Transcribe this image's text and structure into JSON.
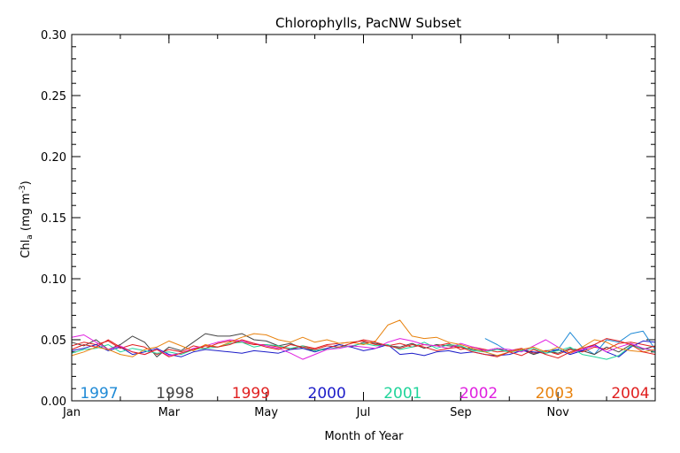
{
  "chart_data": {
    "type": "line",
    "title": "Chlorophylls, PacNW Subset",
    "xlabel": "Month of Year",
    "ylabel_main": "Chl",
    "ylabel_sub": "a",
    "ylabel_units": "(mg m",
    "ylabel_exp": "-3",
    "ylabel_close": ")",
    "xlim": [
      0,
      12
    ],
    "ylim": [
      0,
      0.3
    ],
    "x_ticks": [
      {
        "value": 0,
        "label": "Jan"
      },
      {
        "value": 2,
        "label": "Mar"
      },
      {
        "value": 4,
        "label": "May"
      },
      {
        "value": 6,
        "label": "Jul"
      },
      {
        "value": 8,
        "label": "Sep"
      },
      {
        "value": 10,
        "label": "Nov"
      }
    ],
    "y_ticks": [
      {
        "value": 0.0,
        "label": "0.00"
      },
      {
        "value": 0.05,
        "label": "0.05"
      },
      {
        "value": 0.1,
        "label": "0.10"
      },
      {
        "value": 0.15,
        "label": "0.15"
      },
      {
        "value": 0.2,
        "label": "0.20"
      },
      {
        "value": 0.25,
        "label": "0.25"
      },
      {
        "value": 0.3,
        "label": "0.30"
      }
    ],
    "legend_placement": "bottom inside plot",
    "x": [
      0,
      0.25,
      0.5,
      0.75,
      1,
      1.25,
      1.5,
      1.75,
      2,
      2.25,
      2.5,
      2.75,
      3,
      3.25,
      3.5,
      3.75,
      4,
      4.25,
      4.5,
      4.75,
      5,
      5.25,
      5.5,
      5.75,
      6,
      6.25,
      6.5,
      6.75,
      7,
      7.25,
      7.5,
      7.75,
      8,
      8.25,
      8.5,
      8.75,
      9,
      9.25,
      9.5,
      9.75,
      10,
      10.25,
      10.5,
      10.75,
      11,
      11.25,
      11.5,
      11.75,
      12
    ],
    "series": [
      {
        "name": "1997",
        "color": "#1f8ad6",
        "values": [
          null,
          null,
          null,
          null,
          null,
          null,
          null,
          null,
          null,
          null,
          null,
          null,
          null,
          null,
          null,
          null,
          null,
          null,
          null,
          null,
          null,
          null,
          null,
          null,
          null,
          null,
          null,
          null,
          null,
          null,
          null,
          null,
          null,
          null,
          0.051,
          0.046,
          0.04,
          0.042,
          0.039,
          0.041,
          0.042,
          0.056,
          0.044,
          0.038,
          0.05,
          0.048,
          0.055,
          0.057,
          0.042
        ]
      },
      {
        "name": "1998",
        "color": "#444444",
        "values": [
          0.048,
          0.045,
          0.05,
          0.042,
          0.046,
          0.053,
          0.048,
          0.036,
          0.044,
          0.041,
          0.048,
          0.055,
          0.053,
          0.053,
          0.055,
          0.05,
          0.049,
          0.045,
          0.047,
          0.043,
          0.041,
          0.043,
          0.046,
          0.044,
          0.048,
          0.047,
          0.045,
          0.044,
          0.047,
          0.043,
          0.046,
          0.045,
          0.044,
          0.042,
          0.041,
          0.043,
          0.04,
          0.042,
          0.038,
          0.041,
          0.039,
          0.043,
          0.041,
          0.038,
          0.044,
          0.04,
          0.046,
          0.042,
          0.045
        ]
      },
      {
        "name": "1999",
        "color": "#e02020",
        "values": [
          0.045,
          0.048,
          0.046,
          0.049,
          0.043,
          0.046,
          0.044,
          0.038,
          0.042,
          0.04,
          0.045,
          0.043,
          0.047,
          0.049,
          0.048,
          0.046,
          0.046,
          0.044,
          0.042,
          0.045,
          0.043,
          0.046,
          0.047,
          0.048,
          0.049,
          0.046,
          0.045,
          0.047,
          0.044,
          0.046,
          0.045,
          0.047,
          0.042,
          0.044,
          0.042,
          0.04,
          0.041,
          0.043,
          0.039,
          0.041,
          0.038,
          0.042,
          0.04,
          0.044,
          0.042,
          0.047,
          0.048,
          0.046,
          0.044
        ]
      },
      {
        "name": "2000",
        "color": "#1c1cc8",
        "values": [
          0.041,
          0.043,
          0.046,
          0.041,
          0.044,
          0.038,
          0.04,
          0.043,
          0.038,
          0.036,
          0.04,
          0.042,
          0.041,
          0.04,
          0.039,
          0.041,
          0.04,
          0.039,
          0.042,
          0.043,
          0.04,
          0.043,
          0.046,
          0.044,
          0.041,
          0.043,
          0.046,
          0.038,
          0.039,
          0.037,
          0.04,
          0.041,
          0.039,
          0.04,
          0.038,
          0.037,
          0.038,
          0.041,
          0.04,
          0.039,
          0.042,
          0.038,
          0.041,
          0.046,
          0.04,
          0.036,
          0.044,
          0.049,
          0.048
        ]
      },
      {
        "name": "2001",
        "color": "#20d49a",
        "values": [
          0.039,
          0.042,
          0.043,
          0.046,
          0.04,
          0.043,
          0.041,
          0.039,
          0.04,
          0.038,
          0.042,
          0.043,
          0.044,
          0.047,
          0.048,
          0.044,
          0.046,
          0.045,
          0.043,
          0.045,
          0.041,
          0.042,
          0.044,
          0.045,
          0.047,
          0.045,
          0.046,
          0.042,
          0.044,
          0.048,
          0.043,
          0.046,
          0.045,
          0.041,
          0.04,
          0.042,
          0.04,
          0.041,
          0.043,
          0.039,
          0.041,
          0.044,
          0.038,
          0.036,
          0.034,
          0.037,
          0.045,
          0.043,
          0.04
        ]
      },
      {
        "name": "2002",
        "color": "#e020e0",
        "values": [
          0.052,
          0.054,
          0.048,
          0.042,
          0.045,
          0.04,
          0.038,
          0.042,
          0.037,
          0.039,
          0.043,
          0.045,
          0.048,
          0.05,
          0.049,
          0.047,
          0.045,
          0.043,
          0.039,
          0.034,
          0.038,
          0.042,
          0.043,
          0.045,
          0.044,
          0.043,
          0.048,
          0.051,
          0.049,
          0.046,
          0.045,
          0.043,
          0.047,
          0.044,
          0.041,
          0.043,
          0.042,
          0.04,
          0.045,
          0.05,
          0.044,
          0.039,
          0.042,
          0.045,
          0.04,
          0.044,
          0.047,
          0.043,
          0.041
        ]
      },
      {
        "name": "2003",
        "color": "#e8820e",
        "values": [
          0.037,
          0.04,
          0.044,
          0.042,
          0.038,
          0.036,
          0.042,
          0.044,
          0.049,
          0.045,
          0.041,
          0.046,
          0.044,
          0.048,
          0.052,
          0.055,
          0.054,
          0.05,
          0.048,
          0.052,
          0.048,
          0.05,
          0.047,
          0.048,
          0.046,
          0.049,
          0.062,
          0.066,
          0.053,
          0.051,
          0.052,
          0.048,
          0.046,
          0.043,
          0.04,
          0.037,
          0.04,
          0.042,
          0.044,
          0.04,
          0.044,
          0.039,
          0.044,
          0.05,
          0.048,
          0.043,
          0.041,
          0.04,
          0.042
        ]
      },
      {
        "name": "2004",
        "color": "#e02020",
        "values": [
          0.042,
          0.046,
          0.044,
          0.05,
          0.044,
          0.04,
          0.038,
          0.042,
          0.036,
          0.039,
          0.042,
          0.045,
          0.044,
          0.046,
          0.05,
          0.047,
          0.044,
          0.042,
          0.046,
          0.044,
          0.042,
          0.045,
          0.044,
          0.047,
          0.05,
          0.048,
          0.045,
          0.043,
          0.046,
          0.044,
          0.041,
          0.043,
          0.044,
          0.04,
          0.038,
          0.036,
          0.04,
          0.037,
          0.042,
          0.038,
          0.035,
          0.04,
          0.043,
          0.046,
          0.051,
          0.049,
          0.046,
          0.04,
          0.038
        ]
      }
    ]
  }
}
